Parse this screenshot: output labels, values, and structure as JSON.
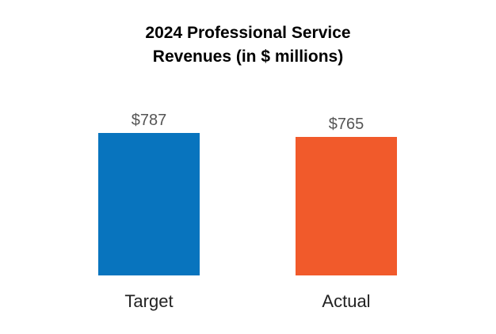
{
  "chart_data": {
    "type": "bar",
    "title_lines": [
      "2024 Professional Service",
      "Revenues (in $ millions)"
    ],
    "categories": [
      "Target",
      "Actual"
    ],
    "values": [
      787,
      765
    ],
    "data_labels": [
      "$787",
      "$765"
    ],
    "colors": [
      "#0874BE",
      "#F15A2B"
    ],
    "xlabel": "",
    "ylabel": "",
    "grid": false,
    "legend": "none"
  }
}
